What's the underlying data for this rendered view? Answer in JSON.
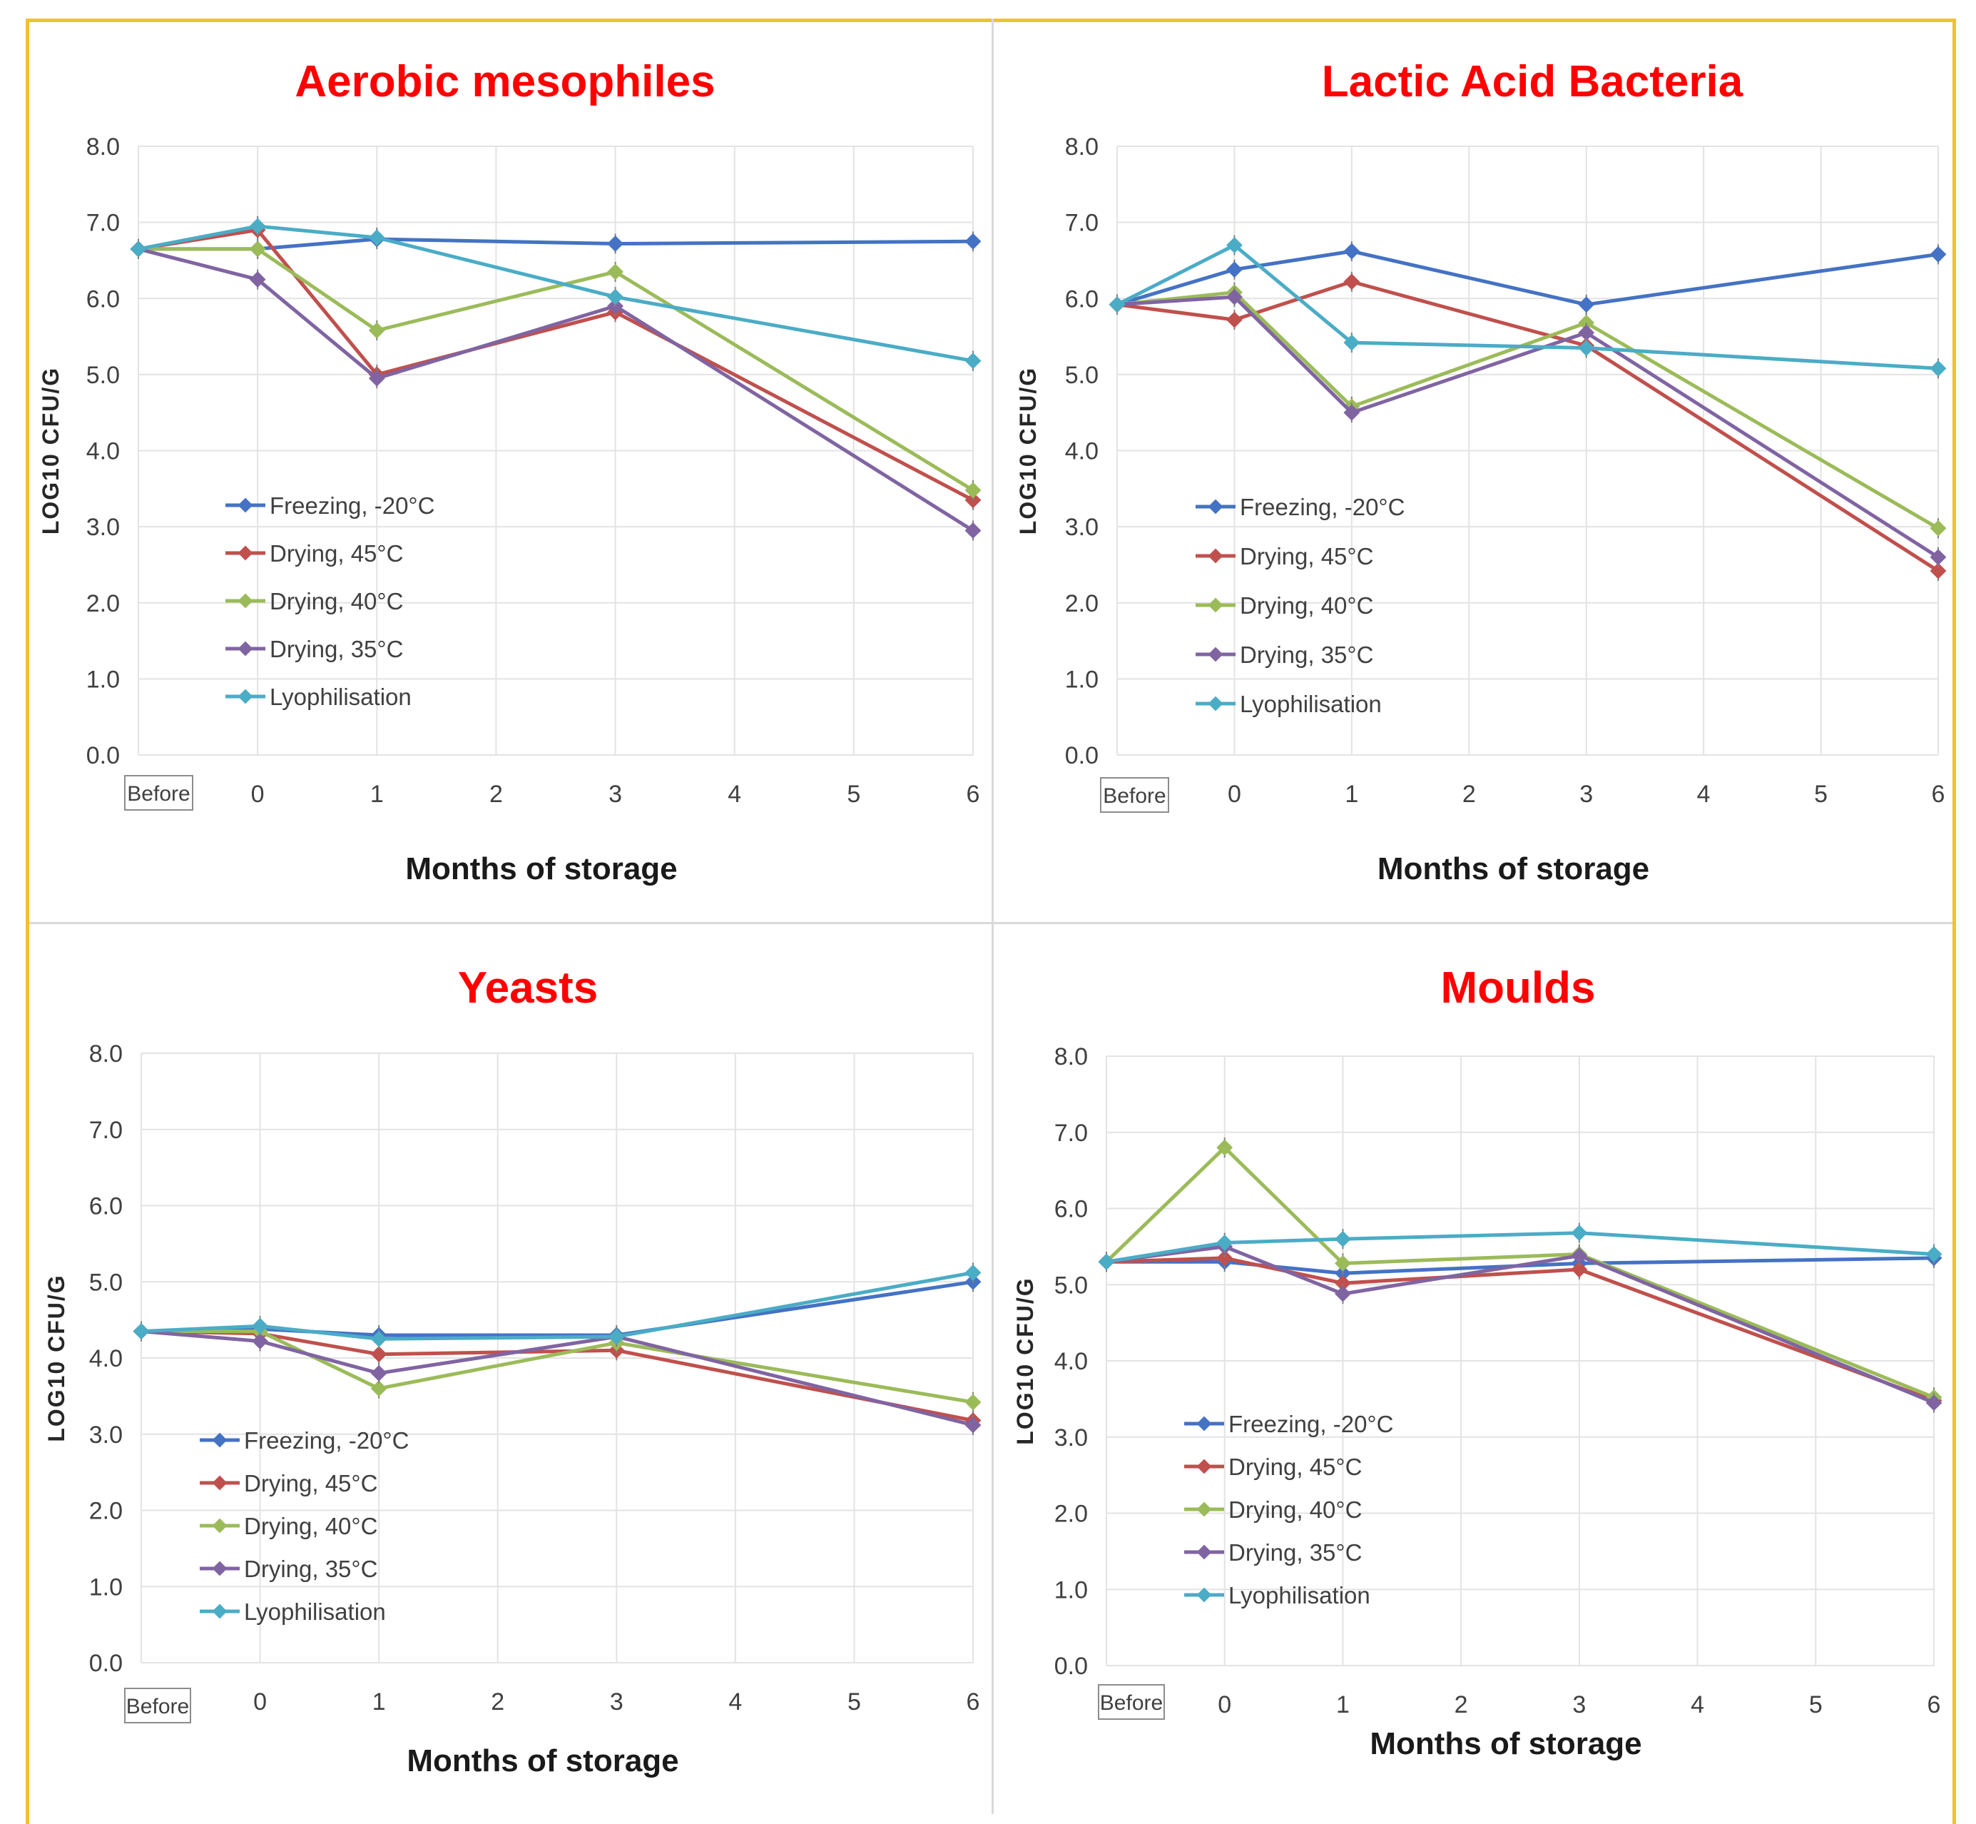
{
  "frame_color": "#f2c12e",
  "series_colors": {
    "Freezing, -20°C": "#4472c4",
    "Drying, 45°C": "#c0504d",
    "Drying, 40°C": "#9bbb59",
    "Drying, 35°C": "#8064a2",
    "Lyophilisation": "#4bacc6"
  },
  "chart_data": [
    {
      "type": "line",
      "title": "Aerobic mesophiles",
      "xlabel": "Months of storage",
      "ylabel": "LOG10 CFU/G",
      "x_ticks": [
        0,
        1,
        2,
        3,
        4,
        5,
        6
      ],
      "before_label": "Before",
      "xlim": [
        -1,
        6
      ],
      "ylim": [
        0,
        8
      ],
      "y_ticks": [
        "0.0",
        "1.0",
        "2.0",
        "3.0",
        "4.0",
        "5.0",
        "6.0",
        "7.0",
        "8.0"
      ],
      "x": [
        -1,
        0,
        1,
        3,
        6
      ],
      "grid": true,
      "legend_position": "lower-left",
      "series": [
        {
          "name": "Freezing, -20°C",
          "values": [
            6.65,
            6.65,
            6.78,
            6.72,
            6.75
          ]
        },
        {
          "name": "Drying, 45°C",
          "values": [
            6.65,
            6.9,
            5.0,
            5.82,
            3.35
          ]
        },
        {
          "name": "Drying, 40°C",
          "values": [
            6.65,
            6.65,
            5.58,
            6.35,
            3.48
          ]
        },
        {
          "name": "Drying, 35°C",
          "values": [
            6.65,
            6.25,
            4.95,
            5.9,
            2.95
          ]
        },
        {
          "name": "Lyophilisation",
          "values": [
            6.65,
            6.95,
            6.8,
            6.02,
            5.18
          ]
        }
      ]
    },
    {
      "type": "line",
      "title": "Lactic Acid Bacteria",
      "xlabel": "Months of storage",
      "ylabel": "LOG10 CFU/G",
      "x_ticks": [
        0,
        1,
        2,
        3,
        4,
        5,
        6
      ],
      "before_label": "Before",
      "xlim": [
        -1,
        6
      ],
      "ylim": [
        0,
        8
      ],
      "y_ticks": [
        "0.0",
        "1.0",
        "2.0",
        "3.0",
        "4.0",
        "5.0",
        "6.0",
        "7.0",
        "8.0"
      ],
      "x": [
        -1,
        0,
        1,
        3,
        6
      ],
      "grid": true,
      "legend_position": "lower-left",
      "series": [
        {
          "name": "Freezing, -20°C",
          "values": [
            5.92,
            6.38,
            6.62,
            5.92,
            6.58
          ]
        },
        {
          "name": "Drying, 45°C",
          "values": [
            5.92,
            5.72,
            6.22,
            5.38,
            2.42
          ]
        },
        {
          "name": "Drying, 40°C",
          "values": [
            5.92,
            6.08,
            4.58,
            5.68,
            2.98
          ]
        },
        {
          "name": "Drying, 35°C",
          "values": [
            5.92,
            6.02,
            4.5,
            5.55,
            2.6
          ]
        },
        {
          "name": "Lyophilisation",
          "values": [
            5.92,
            6.7,
            5.42,
            5.35,
            5.08
          ]
        }
      ]
    },
    {
      "type": "line",
      "title": "Yeasts",
      "xlabel": "Months of storage",
      "ylabel": "LOG10 CFU/G",
      "x_ticks": [
        0,
        1,
        2,
        3,
        4,
        5,
        6
      ],
      "before_label": "Before",
      "xlim": [
        -1,
        6
      ],
      "ylim": [
        0,
        8
      ],
      "y_ticks": [
        "0.0",
        "1.0",
        "2.0",
        "3.0",
        "4.0",
        "5.0",
        "6.0",
        "7.0",
        "8.0"
      ],
      "x": [
        -1,
        0,
        1,
        3,
        6
      ],
      "grid": true,
      "legend_position": "lower-left",
      "series": [
        {
          "name": "Freezing, -20°C",
          "values": [
            4.35,
            4.38,
            4.3,
            4.3,
            5.0
          ]
        },
        {
          "name": "Drying, 45°C",
          "values": [
            4.35,
            4.32,
            4.05,
            4.1,
            3.18
          ]
        },
        {
          "name": "Drying, 40°C",
          "values": [
            4.35,
            4.35,
            3.6,
            4.2,
            3.42
          ]
        },
        {
          "name": "Drying, 35°C",
          "values": [
            4.35,
            4.22,
            3.8,
            4.28,
            3.12
          ]
        },
        {
          "name": "Lyophilisation",
          "values": [
            4.35,
            4.42,
            4.25,
            4.28,
            5.12
          ]
        }
      ]
    },
    {
      "type": "line",
      "title": "Moulds",
      "xlabel": "Months of storage",
      "ylabel": "LOG10 CFU/G",
      "x_ticks": [
        0,
        1,
        2,
        3,
        4,
        5,
        6
      ],
      "before_label": "Before",
      "xlim": [
        -1,
        6
      ],
      "ylim": [
        0,
        8
      ],
      "y_ticks": [
        "0.0",
        "1.0",
        "2.0",
        "3.0",
        "4.0",
        "5.0",
        "6.0",
        "7.0",
        "8.0"
      ],
      "x": [
        -1,
        0,
        1,
        3,
        6
      ],
      "grid": true,
      "legend_position": "lower-left",
      "series": [
        {
          "name": "Freezing, -20°C",
          "values": [
            5.3,
            5.3,
            5.15,
            5.28,
            5.35
          ]
        },
        {
          "name": "Drying, 45°C",
          "values": [
            5.3,
            5.35,
            5.02,
            5.2,
            3.48
          ]
        },
        {
          "name": "Drying, 40°C",
          "values": [
            5.3,
            6.8,
            5.28,
            5.4,
            3.52
          ]
        },
        {
          "name": "Drying, 35°C",
          "values": [
            5.3,
            5.5,
            4.88,
            5.38,
            3.45
          ]
        },
        {
          "name": "Lyophilisation",
          "values": [
            5.3,
            5.55,
            5.6,
            5.68,
            5.4
          ]
        }
      ]
    }
  ]
}
